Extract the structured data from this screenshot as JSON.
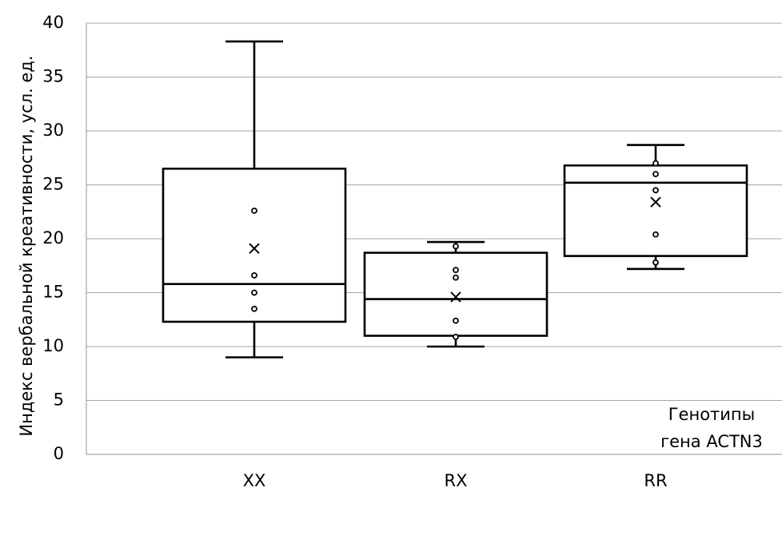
{
  "chart_data": {
    "type": "box",
    "ylabel": "Индекс вербальной креативности, усл. ед.",
    "xlabel": "",
    "ylim": [
      0,
      40
    ],
    "yticks": [
      0,
      5,
      10,
      15,
      20,
      25,
      30,
      35,
      40
    ],
    "grid": true,
    "annotation": [
      "Генотипы",
      "гена ACTN3"
    ],
    "categories": [
      "XX",
      "RX",
      "RR"
    ],
    "boxes": [
      {
        "category": "XX",
        "whisker_low": 9.0,
        "q1": 12.3,
        "median": 15.8,
        "q3": 26.5,
        "whisker_high": 38.3,
        "mean": 19.1,
        "points": [
          22.6,
          16.6,
          15.0,
          13.5
        ]
      },
      {
        "category": "RX",
        "whisker_low": 10.0,
        "q1": 11.0,
        "median": 14.4,
        "q3": 18.7,
        "whisker_high": 19.7,
        "mean": 14.6,
        "points": [
          19.3,
          17.1,
          16.4,
          12.4,
          10.9
        ]
      },
      {
        "category": "RR",
        "whisker_low": 17.2,
        "q1": 18.4,
        "median": 25.2,
        "q3": 26.8,
        "whisker_high": 28.7,
        "mean": 23.4,
        "points": [
          27.0,
          26.0,
          24.5,
          20.4,
          17.8
        ]
      }
    ]
  }
}
